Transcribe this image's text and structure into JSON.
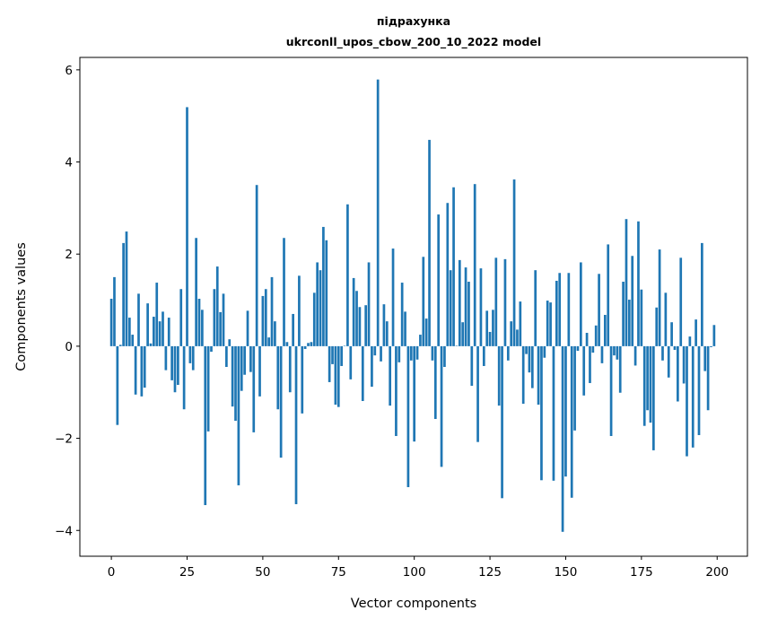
{
  "chart_data": {
    "type": "bar",
    "title": [
      "підрахунка",
      "ukrconll_upos_cbow_200_10_2022 model"
    ],
    "xlabel": "Vector components",
    "ylabel": "Components values",
    "xlim": [
      -10.4,
      210
    ],
    "ylim": [
      -4.56,
      6.27
    ],
    "xticks": [
      0,
      25,
      50,
      75,
      100,
      125,
      150,
      175,
      200
    ],
    "xtick_labels": [
      "0",
      "25",
      "50",
      "75",
      "100",
      "125",
      "150",
      "175",
      "200"
    ],
    "yticks": [
      -4,
      -2,
      0,
      2,
      4,
      6
    ],
    "ytick_labels": [
      "−4",
      "−2",
      "0",
      "2",
      "4",
      "6"
    ],
    "grid": false,
    "color": "#1f77b4",
    "bar_width": 0.8,
    "values": [
      1.03,
      1.5,
      -1.71,
      0.03,
      2.24,
      2.49,
      0.62,
      0.25,
      -1.05,
      1.14,
      -1.09,
      -0.9,
      0.93,
      0.06,
      0.64,
      1.38,
      0.54,
      0.75,
      -0.52,
      0.62,
      -0.74,
      -1.0,
      -0.84,
      1.24,
      -1.37,
      5.19,
      -0.37,
      -0.52,
      2.35,
      1.03,
      0.79,
      -3.45,
      -1.85,
      -0.12,
      1.24,
      1.73,
      0.74,
      1.14,
      -0.45,
      0.15,
      -1.31,
      -1.62,
      -3.02,
      -0.97,
      -0.62,
      0.77,
      -0.56,
      -1.87,
      3.5,
      -1.09,
      1.09,
      1.24,
      0.19,
      1.5,
      0.54,
      -1.37,
      -2.42,
      2.35,
      0.09,
      -1.0,
      0.7,
      -3.43,
      1.53,
      -1.46,
      -0.06,
      0.07,
      0.09,
      1.16,
      1.82,
      1.65,
      2.59,
      2.3,
      -0.78,
      -0.39,
      -1.27,
      -1.32,
      -0.43,
      0.01,
      3.08,
      -0.72,
      1.48,
      1.2,
      0.85,
      -1.19,
      0.89,
      1.82,
      -0.88,
      -0.2,
      5.79,
      -0.33,
      0.91,
      0.54,
      -1.29,
      2.12,
      -1.95,
      -0.35,
      1.38,
      0.75,
      -3.06,
      -0.31,
      -2.07,
      -0.29,
      0.25,
      1.94,
      0.6,
      4.48,
      -0.31,
      -1.58,
      2.86,
      -2.62,
      -0.45,
      3.11,
      1.65,
      3.45,
      0.01,
      1.87,
      0.52,
      1.71,
      1.4,
      -0.86,
      3.52,
      -2.08,
      1.69,
      -0.43,
      0.77,
      0.31,
      0.79,
      1.92,
      -1.29,
      -3.3,
      1.89,
      -0.31,
      0.54,
      3.62,
      0.36,
      0.97,
      -1.25,
      -0.17,
      -0.57,
      -0.91,
      1.65,
      -1.27,
      -2.91,
      -0.25,
      0.99,
      0.95,
      -2.92,
      1.42,
      1.59,
      -4.03,
      -2.83,
      1.59,
      -3.29,
      -1.83,
      -0.1,
      1.82,
      -1.07,
      0.29,
      -0.8,
      -0.14,
      0.45,
      1.57,
      -0.37,
      0.68,
      2.21,
      -1.95,
      -0.2,
      -0.29,
      -1.01,
      1.4,
      2.76,
      1.01,
      1.96,
      -0.42,
      2.71,
      1.23,
      -1.73,
      -1.39,
      -1.66,
      -2.26,
      0.84,
      2.1,
      -0.31,
      1.16,
      -0.68,
      0.52,
      -0.08,
      -1.2,
      1.92,
      -0.81,
      -2.39,
      0.21,
      -2.2,
      0.58,
      -1.93,
      2.24,
      -0.54,
      -1.39,
      -0.02,
      0.46
    ]
  }
}
